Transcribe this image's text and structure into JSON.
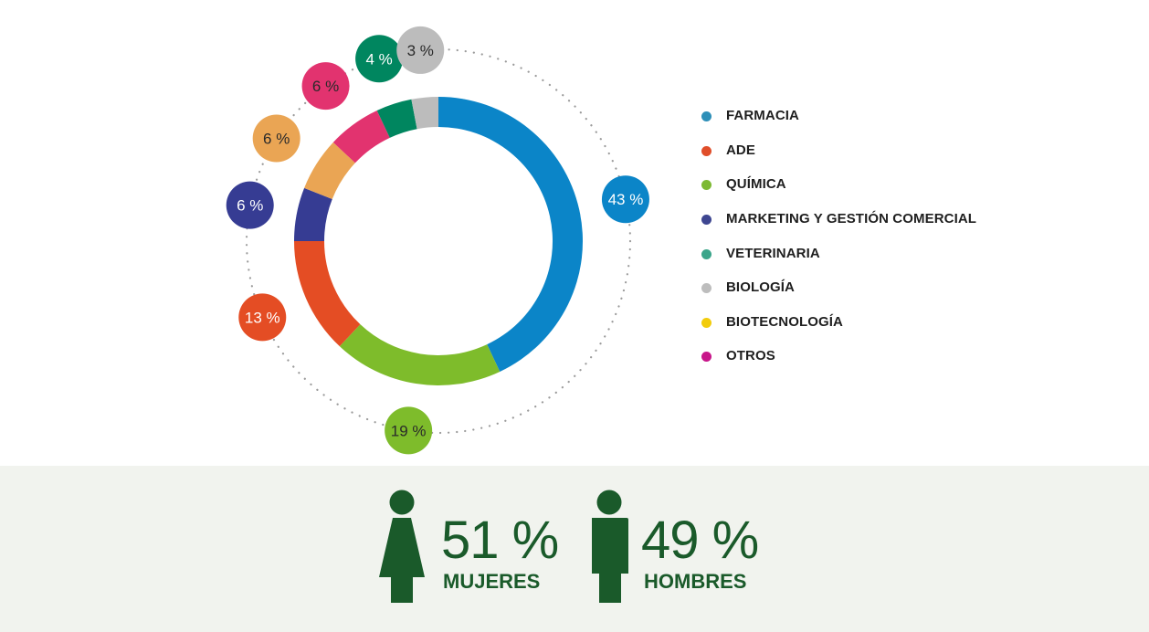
{
  "chart_data": {
    "type": "donut",
    "slices": [
      {
        "label": "FARMACIA",
        "value": 43,
        "display": "43 %",
        "color": "#0b85c8"
      },
      {
        "label": "QUÍMICA",
        "value": 19,
        "display": "19 %",
        "color": "#7ebc2b"
      },
      {
        "label": "ADE",
        "value": 13,
        "display": "13 %",
        "color": "#e44d24"
      },
      {
        "label": "MARKETING Y GESTIÓN COMERCIAL",
        "value": 6,
        "display": "6 %",
        "color": "#363c93"
      },
      {
        "label": "BIOTECNOLOGÍA",
        "value": 6,
        "display": "6 %",
        "color": "#eaa554"
      },
      {
        "label": "OTROS",
        "value": 6,
        "display": "6 %",
        "color": "#e2336f"
      },
      {
        "label": "VETERINARIA",
        "value": 4,
        "display": "4 %",
        "color": "#00865f"
      },
      {
        "label": "BIOLOGÍA",
        "value": 3,
        "display": "3 %",
        "color": "#bcbcbc"
      }
    ],
    "legend_placement": "right"
  },
  "legend": [
    {
      "label": "FARMACIA",
      "color": "#2e8fb8"
    },
    {
      "label": "ADE",
      "color": "#e04e2a"
    },
    {
      "label": "QUÍMICA",
      "color": "#7db933"
    },
    {
      "label": "MARKETING Y GESTIÓN COMERCIAL",
      "color": "#3e4691"
    },
    {
      "label": "VETERINARIA",
      "color": "#3ba58a"
    },
    {
      "label": "BIOLOGÍA",
      "color": "#bdbdbd"
    },
    {
      "label": "BIOTECNOLOGÍA",
      "color": "#f2cc0c"
    },
    {
      "label": "OTROS",
      "color": "#c8168a"
    }
  ],
  "gender": {
    "women": {
      "percent": "51 %",
      "label": "MUJERES",
      "value": 51
    },
    "men": {
      "percent": "49 %",
      "label": "HOMBRES",
      "value": 49
    }
  },
  "colors": {
    "accent_green": "#1a5a2a",
    "band_background": "#f1f3ee"
  }
}
